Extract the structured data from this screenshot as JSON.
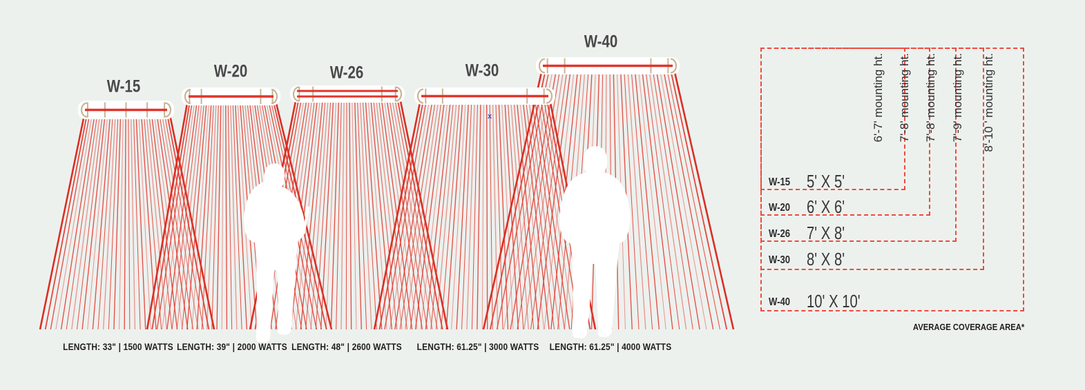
{
  "colors": {
    "background": "#edf1ee",
    "ray_red": "#e23c31",
    "edge_red": "#d92f24",
    "element_red": "#e1342b",
    "bracket_tan": "#c9b496",
    "heater_label_gray": "#48484a",
    "text_dark": "#1f1f1d",
    "legend_dash_red": "#ee4a3d",
    "silhouette_white": "#ffffff",
    "marker_blue": "#3d4ed1"
  },
  "heaters": [
    {
      "model": "W-15",
      "spec": "LENGTH: 33\" | 1500 WATTS",
      "coverage": "5' X 5'",
      "mounting": "6'-7' mounting ht."
    },
    {
      "model": "W-20",
      "spec": "LENGTH: 39\" | 2000 WATTS",
      "coverage": "6' X 6'",
      "mounting": "7'-8' mounting ht."
    },
    {
      "model": "W-26",
      "spec": "LENGTH: 48\" | 2600 WATTS",
      "coverage": "7' X 8'",
      "mounting": "7'-8' mounting ht."
    },
    {
      "model": "W-30",
      "spec": "LENGTH: 61.25\" | 3000 WATTS",
      "coverage": "8' X 8'",
      "mounting": "7'-9' mounting ht."
    },
    {
      "model": "W-40",
      "spec": "LENGTH: 61.25\" | 4000 WATTS",
      "coverage": "10' X 10'",
      "mounting": "8'-10 ' mounting ht."
    }
  ],
  "legend": {
    "note": "AVERAGE COVERAGE AREA*"
  },
  "marker": {
    "glyph": "x"
  }
}
